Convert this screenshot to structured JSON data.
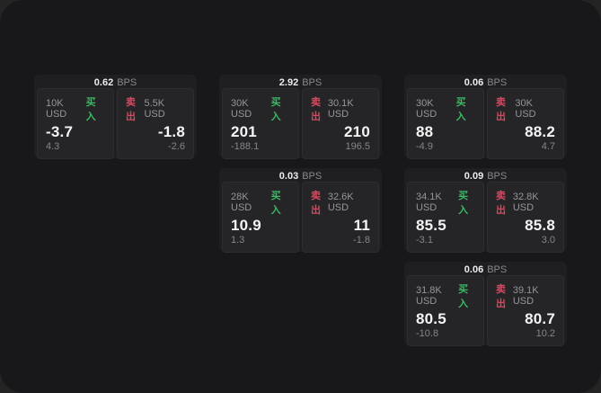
{
  "labels": {
    "bps_unit": "BPS",
    "buy": "买入",
    "sell": "卖出"
  },
  "colors": {
    "buy": "#3db863",
    "sell": "#d5495f",
    "window_bg": "#18181a",
    "card_bg": "#1f1f21",
    "panel_bg": "#252528",
    "panel_border": "#2d2d31"
  },
  "cards": [
    {
      "bps": "0.62",
      "buy": {
        "size": "10K USD",
        "price": "-3.7",
        "delta": "4.3"
      },
      "sell": {
        "size": "5.5K USD",
        "price": "-1.8",
        "delta": "-2.6"
      }
    },
    {
      "bps": "2.92",
      "buy": {
        "size": "30K USD",
        "price": "201",
        "delta": "-188.1"
      },
      "sell": {
        "size": "30.1K USD",
        "price": "210",
        "delta": "196.5"
      }
    },
    {
      "bps": "0.06",
      "buy": {
        "size": "30K USD",
        "price": "88",
        "delta": "-4.9"
      },
      "sell": {
        "size": "30K USD",
        "price": "88.2",
        "delta": "4.7"
      }
    },
    {
      "bps": "0.03",
      "buy": {
        "size": "28K USD",
        "price": "10.9",
        "delta": "1.3"
      },
      "sell": {
        "size": "32.6K USD",
        "price": "11",
        "delta": "-1.8"
      }
    },
    {
      "bps": "0.09",
      "buy": {
        "size": "34.1K USD",
        "price": "85.5",
        "delta": "-3.1"
      },
      "sell": {
        "size": "32.8K USD",
        "price": "85.8",
        "delta": "3.0"
      }
    },
    {
      "bps": "0.06",
      "buy": {
        "size": "31.8K USD",
        "price": "80.5",
        "delta": "-10.8"
      },
      "sell": {
        "size": "39.1K USD",
        "price": "80.7",
        "delta": "10.2"
      }
    }
  ]
}
